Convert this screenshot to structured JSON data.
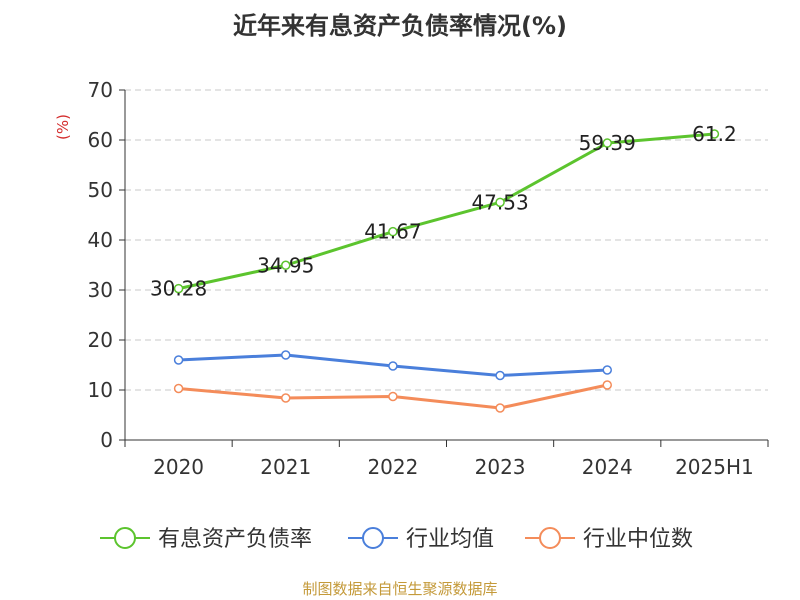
{
  "chart_data": {
    "type": "line",
    "title": "近年来有息资产负债率情况(%)",
    "ylabel": "(%)",
    "xlabel": "",
    "categories": [
      "2020",
      "2021",
      "2022",
      "2023",
      "2024",
      "2025H1"
    ],
    "ylim": [
      0,
      70
    ],
    "yticks": [
      "0",
      "10",
      "20",
      "30",
      "40",
      "50",
      "60",
      "70"
    ],
    "grid": true,
    "legend_position": "bottom",
    "series": [
      {
        "name": "有息资产负债率",
        "color": "#5cc42e",
        "values": [
          30.28,
          34.95,
          41.67,
          47.53,
          59.39,
          61.2
        ],
        "labels": [
          "30.28",
          "34.95",
          "41.67",
          "47.53",
          "59.39",
          "61.2"
        ],
        "show_labels": true
      },
      {
        "name": "行业均值",
        "color": "#4a7fdb",
        "values": [
          16.0,
          17.0,
          14.8,
          12.9,
          14.0,
          null
        ],
        "show_labels": false
      },
      {
        "name": "行业中位数",
        "color": "#f48c5a",
        "values": [
          10.3,
          8.4,
          8.7,
          6.4,
          11.0,
          null
        ],
        "show_labels": false
      }
    ]
  },
  "source_text": "制图数据来自恒生聚源数据库"
}
